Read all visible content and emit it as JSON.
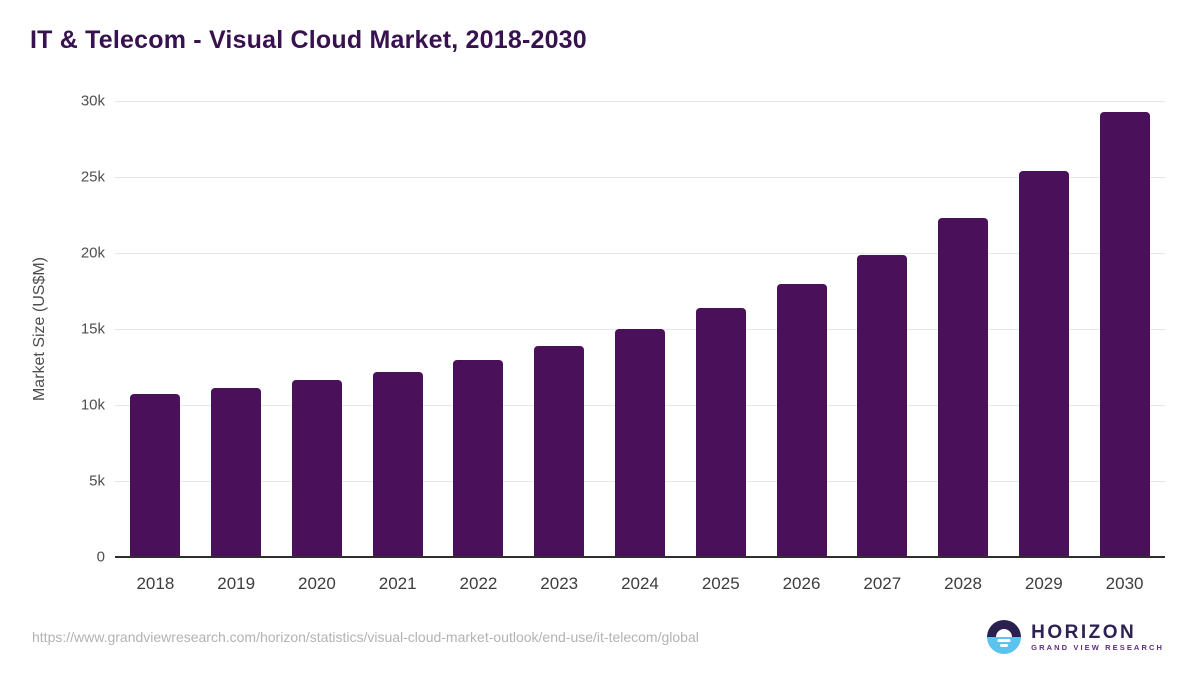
{
  "title": "IT & Telecom - Visual Cloud Market, 2018-2030",
  "footer": {
    "source_url": "https://www.grandviewresearch.com/horizon/statistics/visual-cloud-market-outlook/end-use/it-telecom/global",
    "logo": {
      "name": "HORIZON",
      "subtitle": "GRAND VIEW RESEARCH",
      "icon": "horizon-sun-over-water-icon"
    }
  },
  "colors": {
    "bar": "#4a1059",
    "title_text": "#38124e",
    "axis_text": "#4f4f4f",
    "x_label_text": "#3d3d3d",
    "gridline": "#e8e8e8",
    "axis_line": "#2e2e2e",
    "source_text": "#b4b2b4",
    "logo_navy": "#2b2150",
    "logo_blue": "#5ac4ef",
    "logo_purple": "#5e2d84"
  },
  "chart_data": {
    "type": "bar",
    "title": "IT & Telecom - Visual Cloud Market, 2018-2030",
    "categories": [
      "2018",
      "2019",
      "2020",
      "2021",
      "2022",
      "2023",
      "2024",
      "2025",
      "2026",
      "2027",
      "2028",
      "2029",
      "2030"
    ],
    "values": [
      10700,
      11100,
      11650,
      12200,
      12950,
      13900,
      15000,
      16350,
      17950,
      19900,
      22300,
      25400,
      29300
    ],
    "xlabel": "",
    "ylabel": "Market Size (US$M)",
    "ylim": [
      0,
      30000
    ],
    "yticks": [
      {
        "value": 0,
        "label": "0"
      },
      {
        "value": 5000,
        "label": "5k"
      },
      {
        "value": 10000,
        "label": "10k"
      },
      {
        "value": 15000,
        "label": "15k"
      },
      {
        "value": 20000,
        "label": "20k"
      },
      {
        "value": 25000,
        "label": "25k"
      },
      {
        "value": 30000,
        "label": "30k"
      }
    ],
    "grid": "horizontal",
    "legend": false
  }
}
